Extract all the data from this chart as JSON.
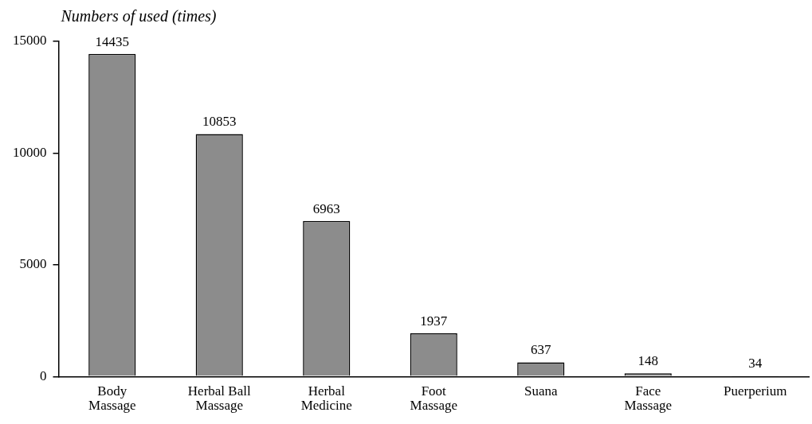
{
  "chart_data": {
    "type": "bar",
    "ylabel": "Numbers of used (times)",
    "categories": [
      "Body Massage",
      "Herbal Ball Massage",
      "Herbal Medicine",
      "Foot Massage",
      "Suana",
      "Face Massage",
      "Puerperium"
    ],
    "values": [
      14435,
      10853,
      6963,
      1937,
      637,
      148,
      34
    ],
    "color": "#8c8c8c",
    "ylim": [
      0,
      15000
    ],
    "yticks": [
      0,
      5000,
      10000,
      15000
    ],
    "grid": false,
    "legend": false,
    "data_labels": true
  }
}
